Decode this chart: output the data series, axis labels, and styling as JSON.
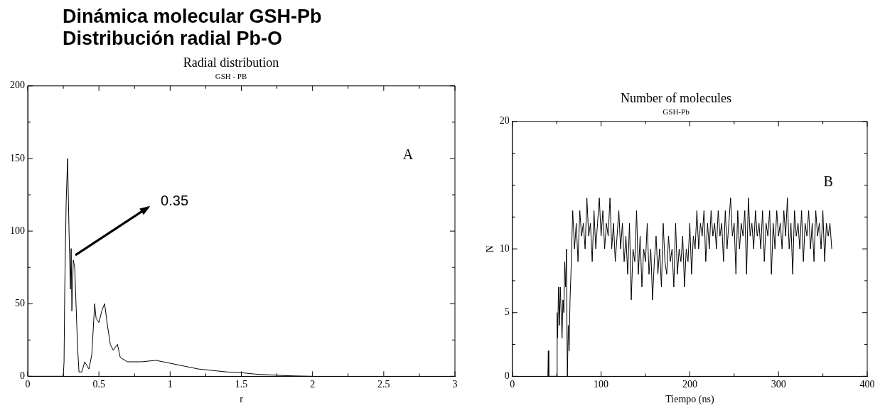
{
  "chart_data": [
    {
      "type": "line",
      "title": "Radial distribution",
      "subtitle": "GSH - PB",
      "xlabel": "r",
      "color": "#000000",
      "x": [
        0,
        0.25,
        0.255,
        0.26,
        0.27,
        0.28,
        0.29,
        0.3,
        0.305,
        0.31,
        0.32,
        0.33,
        0.35,
        0.36,
        0.38,
        0.4,
        0.43,
        0.45,
        0.47,
        0.48,
        0.5,
        0.52,
        0.54,
        0.56,
        0.58,
        0.6,
        0.63,
        0.65,
        0.7,
        0.8,
        0.9,
        1.0,
        1.1,
        1.2,
        1.3,
        1.4,
        1.5,
        1.6,
        1.7,
        1.8,
        1.9,
        2.0
      ],
      "values": [
        0,
        0,
        10,
        60,
        120,
        150,
        100,
        60,
        88,
        45,
        80,
        75,
        20,
        3,
        3,
        10,
        5,
        15,
        50,
        40,
        37,
        45,
        50,
        35,
        22,
        18,
        22,
        13,
        10,
        10,
        11,
        9,
        7,
        5,
        4,
        3,
        2.5,
        1.5,
        1,
        0.5,
        0.2,
        0
      ],
      "xlim": [
        0,
        3
      ],
      "ylim": [
        0,
        200
      ],
      "xticks": [
        0,
        {
          "value": 0.25,
          "label": null
        },
        0.5,
        {
          "value": 0.75,
          "label": null
        },
        1,
        {
          "value": 1.25,
          "label": null
        },
        1.5,
        {
          "value": 1.75,
          "label": null
        },
        2,
        {
          "value": 2.25,
          "label": null
        },
        2.5,
        {
          "value": 2.75,
          "label": null
        },
        3
      ],
      "yticks": [
        0,
        {
          "value": 25,
          "label": null
        },
        50,
        {
          "value": 75,
          "label": null
        },
        100,
        {
          "value": 125,
          "label": null
        },
        150,
        {
          "value": 175,
          "label": null
        },
        200
      ],
      "grid": false,
      "legend": false,
      "marker": "none",
      "annotations": [
        "Dinámica molecular GSH-Pb",
        "Distribución radial Pb-O",
        "A",
        {
          "text": "0.35",
          "x": 0.32,
          "y": 82
        }
      ]
    },
    {
      "type": "line",
      "title": "Number of molecules",
      "subtitle": "GSH-Pb",
      "xlabel": "Tiempo (ns)",
      "ylabel": "N",
      "color": "#000000",
      "x": [
        40,
        40.5,
        41,
        50,
        50.5,
        51,
        52,
        53,
        54,
        55,
        56,
        57,
        58,
        59,
        60,
        61,
        61.5,
        62,
        63,
        64,
        65,
        66,
        68,
        70,
        72,
        74,
        76,
        78,
        80,
        82,
        84,
        86,
        88,
        90,
        92,
        94,
        96,
        98,
        100,
        102,
        104,
        106,
        108,
        110,
        112,
        114,
        116,
        118,
        120,
        122,
        124,
        126,
        128,
        130,
        132,
        134,
        136,
        138,
        140,
        142,
        144,
        146,
        148,
        150,
        152,
        154,
        156,
        158,
        160,
        162,
        164,
        166,
        168,
        170,
        172,
        174,
        176,
        178,
        180,
        182,
        184,
        186,
        188,
        190,
        192,
        194,
        196,
        198,
        200,
        202,
        204,
        206,
        208,
        210,
        212,
        214,
        216,
        218,
        220,
        222,
        224,
        226,
        228,
        230,
        232,
        234,
        236,
        238,
        240,
        242,
        244,
        246,
        248,
        250,
        252,
        254,
        256,
        258,
        260,
        262,
        264,
        266,
        268,
        270,
        272,
        274,
        276,
        278,
        280,
        282,
        284,
        286,
        288,
        290,
        292,
        294,
        296,
        298,
        300,
        302,
        304,
        306,
        308,
        310,
        312,
        314,
        316,
        318,
        320,
        322,
        324,
        326,
        328,
        330,
        332,
        334,
        336,
        338,
        340,
        342,
        344,
        346,
        348,
        350,
        352,
        354,
        356,
        358,
        360
      ],
      "values": [
        0,
        2,
        0,
        0,
        5,
        3,
        7,
        4,
        7,
        5,
        3,
        6,
        5,
        9,
        7,
        10,
        4,
        0,
        4,
        2,
        6,
        8,
        13,
        10,
        12,
        9,
        13,
        11,
        12,
        10,
        14,
        11,
        12,
        9,
        13,
        10,
        12,
        14,
        11,
        13,
        10,
        12,
        11,
        14,
        10,
        12,
        9,
        11,
        13,
        10,
        12,
        9,
        11,
        8,
        12,
        6,
        10,
        9,
        13,
        8,
        11,
        7,
        10,
        9,
        12,
        8,
        10,
        6,
        9,
        11,
        8,
        10,
        7,
        12,
        9,
        8,
        11,
        9,
        10,
        7,
        12,
        8,
        10,
        9,
        11,
        7,
        10,
        9,
        12,
        8,
        11,
        10,
        13,
        10,
        12,
        11,
        13,
        9,
        12,
        10,
        13,
        11,
        12,
        10,
        13,
        11,
        12,
        9,
        13,
        10,
        12,
        14,
        11,
        12,
        8,
        13,
        10,
        12,
        11,
        13,
        8,
        14,
        11,
        12,
        10,
        13,
        11,
        12,
        10,
        13,
        9,
        12,
        11,
        13,
        8,
        12,
        10,
        13,
        11,
        12,
        10,
        13,
        11,
        14,
        10,
        12,
        8,
        13,
        11,
        12,
        10,
        13,
        9,
        12,
        11,
        13,
        10,
        12,
        9,
        13,
        11,
        12,
        10,
        13,
        9,
        12,
        11,
        12,
        10
      ],
      "xlim": [
        0,
        400
      ],
      "ylim": [
        0,
        20
      ],
      "xticks": [
        0,
        {
          "value": 50,
          "label": null
        },
        100,
        {
          "value": 150,
          "label": null
        },
        200,
        {
          "value": 250,
          "label": null
        },
        300,
        {
          "value": 350,
          "label": null
        },
        400
      ],
      "yticks": [
        0,
        {
          "value": 2.5,
          "label": null
        },
        5,
        {
          "value": 7.5,
          "label": null
        },
        10,
        {
          "value": 12.5,
          "label": null
        },
        {
          "value": 15,
          "label": null
        },
        {
          "value": 17.5,
          "label": null
        },
        20
      ],
      "grid": false,
      "legend": false,
      "marker": "none",
      "annotations": [
        "B"
      ]
    }
  ]
}
